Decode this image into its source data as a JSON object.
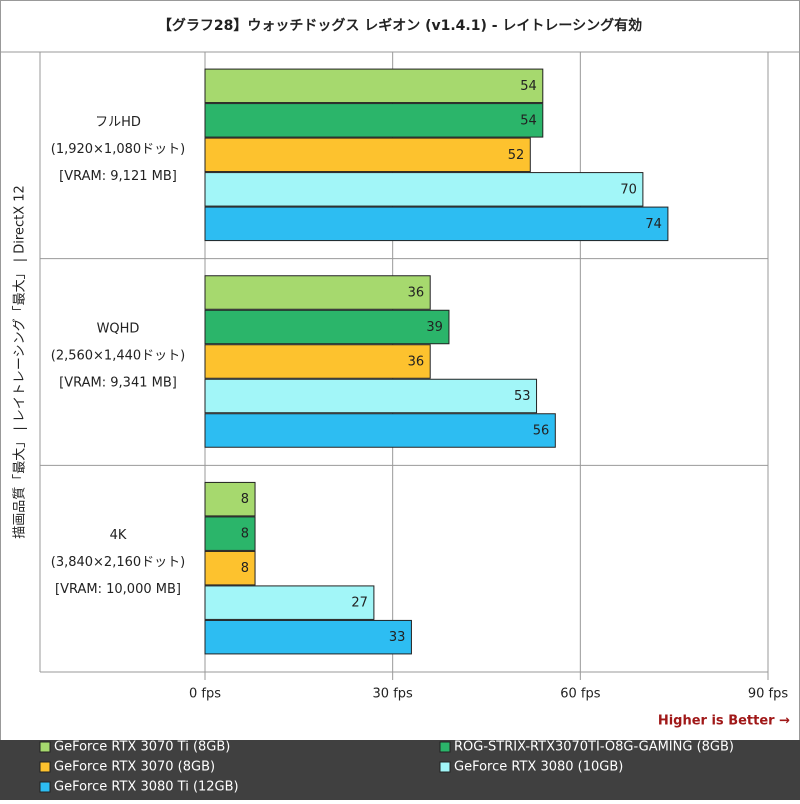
{
  "chart_data": {
    "type": "bar",
    "orientation": "horizontal",
    "title": "【グラフ28】ウォッチドッグス レギオン (v1.4.1) - レイトレーシング有効",
    "side_label": "描画品質「最大」 | レイトレーシング「最大」 | DirectX 12",
    "categories": [
      "フルHD",
      "WQHD",
      "4K"
    ],
    "category_details": [
      [
        "(1,920×1,080ドット)",
        "[VRAM: 9,121 MB]"
      ],
      [
        "(2,560×1,440ドット)",
        "[VRAM: 9,341 MB]"
      ],
      [
        "(3,840×2,160ドット)",
        "[VRAM: 10,000 MB]"
      ]
    ],
    "series": [
      {
        "name": "GeForce RTX 3070 Ti (8GB)",
        "color": "#a6d96e",
        "values": [
          54,
          36,
          8
        ]
      },
      {
        "name": "ROG-STRIX-RTX3070TI-O8G-GAMING (8GB)",
        "color": "#2bb56a",
        "values": [
          54,
          39,
          8
        ]
      },
      {
        "name": "GeForce RTX 3070 (8GB)",
        "color": "#fdc22e",
        "values": [
          52,
          36,
          8
        ]
      },
      {
        "name": "GeForce RTX 3080 (10GB)",
        "color": "#a2f6f8",
        "values": [
          70,
          53,
          27
        ]
      },
      {
        "name": "GeForce RTX 3080 Ti (12GB)",
        "color": "#2dbdf2",
        "values": [
          74,
          56,
          33
        ]
      }
    ],
    "xlim": [
      0,
      90
    ],
    "xticks": [
      {
        "value": 0,
        "label": "0 fps"
      },
      {
        "value": 30,
        "label": "30 fps"
      },
      {
        "value": 60,
        "label": "60 fps"
      },
      {
        "value": 90,
        "label": "90 fps"
      }
    ],
    "grid": true,
    "annotation": "Higher is Better →"
  }
}
